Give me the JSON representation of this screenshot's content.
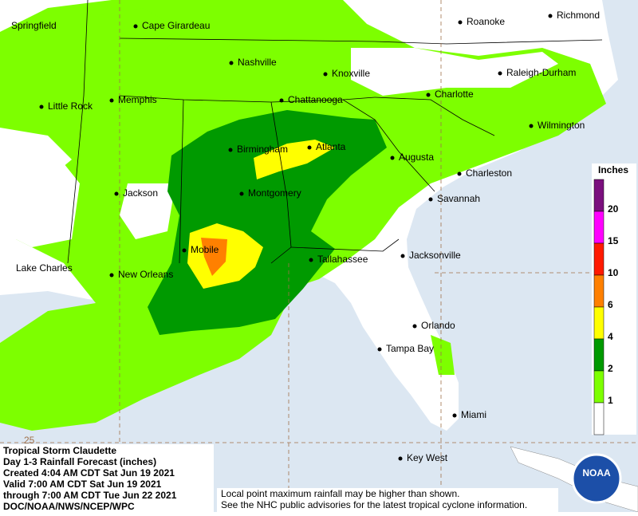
{
  "cities": [
    "Springfield",
    "Cape Girardeau",
    "Roanoke",
    "Richmond",
    "Nashville",
    "Knoxville",
    "Raleigh-Durham",
    "Little Rock",
    "Memphis",
    "Chattanooga",
    "Charlotte",
    "Wilmington",
    "Birmingham",
    "Atlanta",
    "Augusta",
    "Charleston",
    "Jackson",
    "Montgomery",
    "Savannah",
    "Lake Charles",
    "New Orleans",
    "Mobile",
    "Tallahassee",
    "Jacksonville",
    "Orlando",
    "Tampa Bay",
    "Miami",
    "Key West"
  ],
  "latitude_label": "25",
  "legend": {
    "title": "Inches",
    "levels": [
      20,
      15,
      10,
      6,
      4,
      2,
      1
    ],
    "colors": [
      "#7b0f7e",
      "#ff00ff",
      "#ff1a00",
      "#ff8000",
      "#ffff00",
      "#009a00",
      "#7dff00",
      "#ffffff"
    ]
  },
  "caption": [
    "Tropical Storm Claudette",
    "Day 1-3 Rainfall Forecast (inches)",
    "Created 4:04 AM CDT Sat Jun 19 2021",
    "Valid 7:00 AM CDT Sat Jun 19 2021",
    "through 7:00 AM CDT Tue Jun 22 2021",
    "DOC/NOAA/NWS/NCEP/WPC"
  ],
  "note": [
    "Local point maximum rainfall may be higher than shown.",
    "See the NHC public advisories for the latest tropical cyclone information."
  ],
  "logo": "NOAA"
}
